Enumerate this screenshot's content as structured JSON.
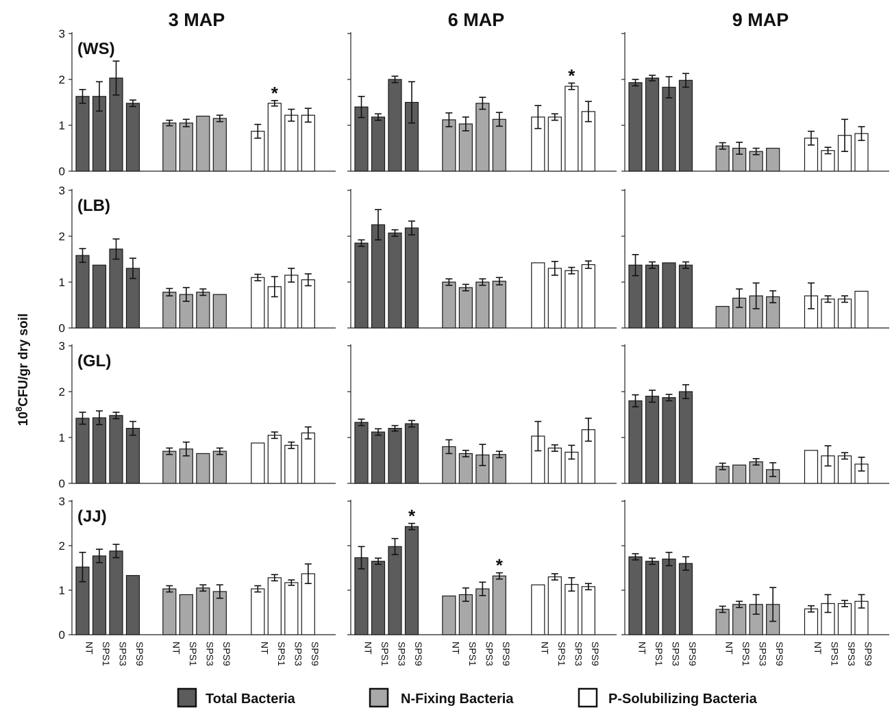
{
  "chart_data": {
    "type": "bar",
    "ylabel": "10^8CFU/gr dry soil",
    "ylabel_base": "10",
    "ylabel_exp": "8",
    "ylabel_rest": "CFU/gr dry soil",
    "ylim": [
      0,
      3
    ],
    "yticks": [
      "0",
      "1",
      "2",
      "3"
    ],
    "columns": [
      "3 MAP",
      "6 MAP",
      "9 MAP"
    ],
    "rows": [
      "(WS)",
      "(LB)",
      "(GL)",
      "(JJ)"
    ],
    "categories": [
      "NT",
      "SPS1",
      "SPS3",
      "SPS9"
    ],
    "groups": [
      "Total Bacteria",
      "N-Fixing Bacteria",
      "P-Solubilizing Bacteria"
    ],
    "significance_marker": "*",
    "legend": {
      "position": "bottom",
      "items": [
        {
          "label": "Total Bacteria",
          "color": "#5c5c5c"
        },
        {
          "label": "N-Fixing Bacteria",
          "color": "#a8a8a8"
        },
        {
          "label": "P-Solubilizing Bacteria",
          "color": "#ffffff"
        }
      ]
    },
    "colors": {
      "total": "#5c5c5c",
      "nfix": "#a8a8a8",
      "psol": "#ffffff",
      "edge": "#1a1a1a"
    },
    "panels": [
      {
        "row": "(WS)",
        "col": "3 MAP",
        "total": [
          1.63,
          1.63,
          2.03,
          1.48
        ],
        "total_err": [
          0.15,
          0.32,
          0.37,
          0.07
        ],
        "nfix": [
          1.05,
          1.05,
          1.2,
          1.15
        ],
        "nfix_err": [
          0.06,
          0.08,
          0,
          0.07
        ],
        "psol": [
          0.87,
          1.48,
          1.22,
          1.22
        ],
        "psol_err": [
          0.15,
          0.06,
          0.13,
          0.15
        ],
        "marks": [
          {
            "group": "psol",
            "index": 1
          }
        ]
      },
      {
        "row": "(WS)",
        "col": "6 MAP",
        "total": [
          1.4,
          1.18,
          2.0,
          1.5
        ],
        "total_err": [
          0.23,
          0.07,
          0.07,
          0.45
        ],
        "nfix": [
          1.12,
          1.03,
          1.48,
          1.13
        ],
        "nfix_err": [
          0.15,
          0.15,
          0.13,
          0.15
        ],
        "psol": [
          1.18,
          1.18,
          1.85,
          1.3
        ],
        "psol_err": [
          0.25,
          0.07,
          0.07,
          0.22
        ],
        "marks": [
          {
            "group": "psol",
            "index": 2
          }
        ]
      },
      {
        "row": "(WS)",
        "col": "9 MAP",
        "total": [
          1.93,
          2.03,
          1.83,
          1.98
        ],
        "total_err": [
          0.07,
          0.06,
          0.23,
          0.15
        ],
        "nfix": [
          0.55,
          0.5,
          0.43,
          0.5
        ],
        "nfix_err": [
          0.07,
          0.13,
          0.07,
          0
        ],
        "psol": [
          0.72,
          0.45,
          0.78,
          0.82
        ],
        "psol_err": [
          0.15,
          0.07,
          0.35,
          0.15
        ],
        "marks": []
      },
      {
        "row": "(LB)",
        "col": "3 MAP",
        "total": [
          1.58,
          1.37,
          1.72,
          1.3
        ],
        "total_err": [
          0.15,
          0,
          0.22,
          0.22
        ],
        "nfix": [
          0.78,
          0.73,
          0.78,
          0.73
        ],
        "nfix_err": [
          0.08,
          0.15,
          0.07,
          0
        ],
        "psol": [
          1.1,
          0.9,
          1.15,
          1.05
        ],
        "psol_err": [
          0.07,
          0.22,
          0.15,
          0.13
        ],
        "marks": []
      },
      {
        "row": "(LB)",
        "col": "6 MAP",
        "total": [
          1.85,
          2.25,
          2.07,
          2.18
        ],
        "total_err": [
          0.07,
          0.33,
          0.07,
          0.15
        ],
        "nfix": [
          1.0,
          0.88,
          1.0,
          1.02
        ],
        "nfix_err": [
          0.07,
          0.07,
          0.07,
          0.08
        ],
        "psol": [
          1.42,
          1.3,
          1.25,
          1.38
        ],
        "psol_err": [
          0,
          0.15,
          0.07,
          0.08
        ],
        "marks": []
      },
      {
        "row": "(LB)",
        "col": "9 MAP",
        "total": [
          1.37,
          1.37,
          1.42,
          1.37
        ],
        "total_err": [
          0.23,
          0.07,
          0,
          0.07
        ],
        "nfix": [
          0.47,
          0.65,
          0.7,
          0.68
        ],
        "nfix_err": [
          0,
          0.2,
          0.28,
          0.13
        ],
        "psol": [
          0.7,
          0.63,
          0.63,
          0.8
        ],
        "psol_err": [
          0.28,
          0.07,
          0.07,
          0
        ],
        "marks": []
      },
      {
        "row": "(GL)",
        "col": "3 MAP",
        "total": [
          1.42,
          1.43,
          1.48,
          1.2
        ],
        "total_err": [
          0.13,
          0.15,
          0.07,
          0.15
        ],
        "nfix": [
          0.7,
          0.75,
          0.65,
          0.7
        ],
        "nfix_err": [
          0.07,
          0.15,
          0,
          0.07
        ],
        "psol": [
          0.88,
          1.05,
          0.83,
          1.1
        ],
        "psol_err": [
          0,
          0.07,
          0.07,
          0.13
        ],
        "marks": []
      },
      {
        "row": "(GL)",
        "col": "6 MAP",
        "total": [
          1.33,
          1.12,
          1.2,
          1.3
        ],
        "total_err": [
          0.07,
          0.07,
          0.06,
          0.07
        ],
        "nfix": [
          0.8,
          0.65,
          0.62,
          0.63
        ],
        "nfix_err": [
          0.15,
          0.07,
          0.23,
          0.07
        ],
        "psol": [
          1.03,
          0.77,
          0.68,
          1.17
        ],
        "psol_err": [
          0.32,
          0.07,
          0.15,
          0.25
        ],
        "marks": []
      },
      {
        "row": "(GL)",
        "col": "9 MAP",
        "total": [
          1.8,
          1.9,
          1.87,
          2.0
        ],
        "total_err": [
          0.13,
          0.13,
          0.07,
          0.15
        ],
        "nfix": [
          0.37,
          0.4,
          0.47,
          0.3
        ],
        "nfix_err": [
          0.07,
          0,
          0.07,
          0.15
        ],
        "psol": [
          0.72,
          0.6,
          0.6,
          0.42
        ],
        "psol_err": [
          0,
          0.22,
          0.07,
          0.15
        ],
        "marks": []
      },
      {
        "row": "(JJ)",
        "col": "3 MAP",
        "total": [
          1.52,
          1.77,
          1.88,
          1.33
        ],
        "total_err": [
          0.33,
          0.15,
          0.15,
          0
        ],
        "nfix": [
          1.03,
          0.9,
          1.05,
          0.97
        ],
        "nfix_err": [
          0.07,
          0,
          0.07,
          0.15
        ],
        "psol": [
          1.03,
          1.28,
          1.17,
          1.37
        ],
        "psol_err": [
          0.07,
          0.07,
          0.06,
          0.22
        ],
        "marks": []
      },
      {
        "row": "(JJ)",
        "col": "6 MAP",
        "total": [
          1.73,
          1.65,
          1.98,
          2.43
        ],
        "total_err": [
          0.25,
          0.07,
          0.18,
          0.07
        ],
        "nfix": [
          0.87,
          0.9,
          1.03,
          1.32
        ],
        "nfix_err": [
          0,
          0.15,
          0.15,
          0.07
        ],
        "psol": [
          1.12,
          1.3,
          1.13,
          1.08
        ],
        "psol_err": [
          0,
          0.07,
          0.15,
          0.07
        ],
        "marks": [
          {
            "group": "total",
            "index": 3
          },
          {
            "group": "nfix",
            "index": 3
          }
        ]
      },
      {
        "row": "(JJ)",
        "col": "9 MAP",
        "total": [
          1.75,
          1.65,
          1.7,
          1.6
        ],
        "total_err": [
          0.07,
          0.07,
          0.15,
          0.15
        ],
        "nfix": [
          0.57,
          0.68,
          0.68,
          0.68
        ],
        "nfix_err": [
          0.07,
          0.07,
          0.22,
          0.38
        ],
        "psol": [
          0.58,
          0.7,
          0.7,
          0.75
        ],
        "psol_err": [
          0.07,
          0.2,
          0.07,
          0.15
        ],
        "marks": []
      }
    ]
  }
}
